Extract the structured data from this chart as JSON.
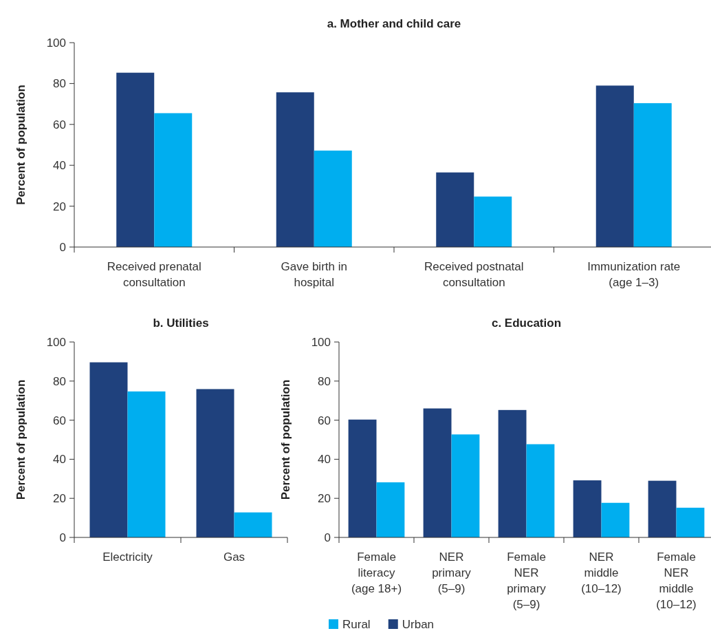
{
  "chart_data": [
    {
      "type": "bar",
      "title": "a. Mother and child care",
      "ylabel": "Percent of population",
      "categories": [
        "Received prenatal consultation",
        "Gave birth in hospital",
        "Received postnatal consultation",
        "Immunization rate (age 1–3)"
      ],
      "series": [
        {
          "color": "#1f417d",
          "values": [
            85.3,
            75.7,
            36.5,
            79
          ]
        },
        {
          "color": "#00aeef",
          "values": [
            65.5,
            47.2,
            24.7,
            70.4
          ]
        }
      ],
      "ylim": [
        0,
        100
      ],
      "yticks": [
        0,
        20,
        40,
        60,
        80,
        100
      ],
      "grid": false
    },
    {
      "type": "bar",
      "title": "b. Utilities",
      "ylabel": "Percent of population",
      "categories": [
        "Electricity",
        "Gas"
      ],
      "series": [
        {
          "color": "#1f417d",
          "values": [
            89.6,
            75.9
          ]
        },
        {
          "color": "#00aeef",
          "values": [
            74.7,
            12.8
          ]
        }
      ],
      "ylim": [
        0,
        100
      ],
      "yticks": [
        0,
        20,
        40,
        60,
        80,
        100
      ],
      "grid": false
    },
    {
      "type": "bar",
      "title": "c. Education",
      "ylabel": "Percent of population",
      "categories": [
        "Female literacy (age 18+)",
        "NER primary (5–9)",
        "Female NER primary (5–9)",
        "NER middle (10–12)",
        "Female NER middle (10–12)"
      ],
      "series": [
        {
          "name": "Urban",
          "color": "#1f417d",
          "values": [
            60.3,
            66,
            65.2,
            29.2,
            29
          ]
        },
        {
          "name": "Rural",
          "color": "#00aeef",
          "values": [
            28.2,
            52.7,
            47.7,
            17.7,
            15.2
          ]
        }
      ],
      "ylim": [
        0,
        100
      ],
      "yticks": [
        0,
        20,
        40,
        60,
        80,
        100
      ],
      "grid": false,
      "legend": "bottom"
    }
  ]
}
